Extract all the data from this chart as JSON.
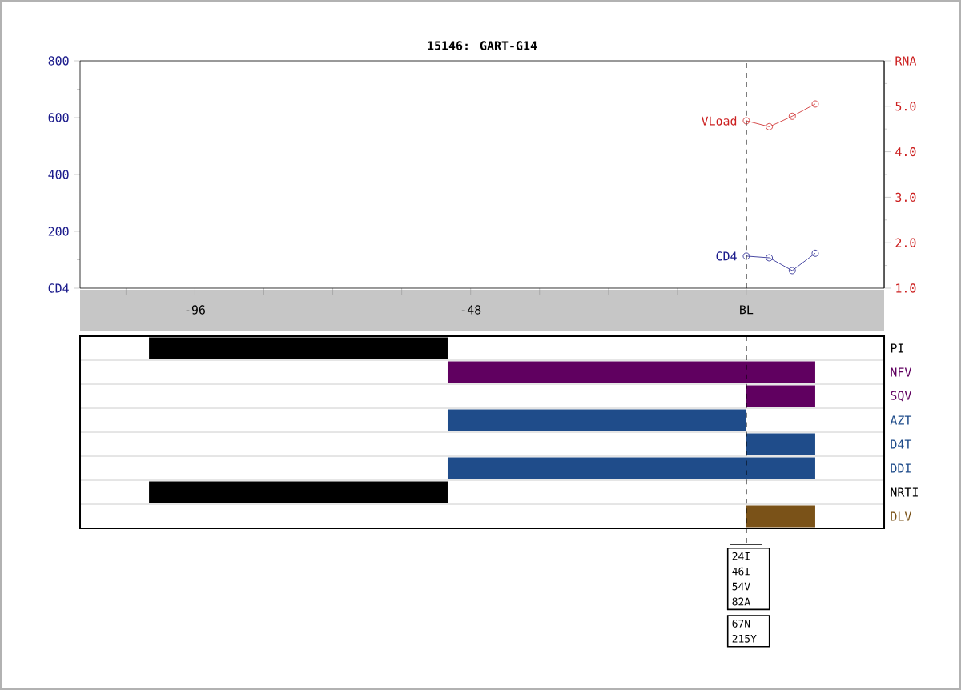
{
  "chart_data": [
    {
      "type": "line",
      "title": "15146: GART-G14",
      "x": [
        0,
        4,
        8,
        12
      ],
      "xlim": [
        -116,
        24
      ],
      "xticks": [
        {
          "value": -108,
          "label": null
        },
        -96,
        {
          "value": -84,
          "label": null
        },
        {
          "value": -72,
          "label": null
        },
        {
          "value": -60,
          "label": null
        },
        -48,
        {
          "value": -36,
          "label": null
        },
        {
          "value": -24,
          "label": null
        },
        {
          "value": -12,
          "label": null
        },
        {
          "value": 0,
          "label": "BL"
        }
      ],
      "ylim": [
        0,
        800
      ],
      "yticks": [
        {
          "value": 0,
          "label": "CD4"
        },
        200,
        400,
        600,
        800
      ],
      "y2lim": [
        1,
        6
      ],
      "y2ticks": [
        {
          "value": 1,
          "label": "1.0"
        },
        {
          "value": 2,
          "label": "2.0"
        },
        {
          "value": 3,
          "label": "3.0"
        },
        {
          "value": 4,
          "label": "4.0"
        },
        {
          "value": 5,
          "label": "5.0"
        },
        {
          "value": 6,
          "label": "RNA"
        }
      ],
      "series": [
        {
          "name": "CD4",
          "color": "#1c1c8c",
          "values": [
            113,
            107,
            62,
            123
          ]
        },
        {
          "name": "VLoad",
          "color": "#cc2020",
          "axis": "y2",
          "values": [
            4.68,
            4.55,
            4.78,
            5.05
          ]
        }
      ],
      "marker": "circle",
      "line_style": "solid",
      "grid": false,
      "ref_lines": [
        {
          "axis": "x",
          "value": 0,
          "line_style": "dashed"
        }
      ]
    },
    {
      "type": "bar",
      "orientation": "horizontal",
      "categories": [
        "PI",
        "NFV",
        "SQV",
        "AZT",
        "D4T",
        "DDI",
        "NRTI",
        "DLV"
      ],
      "values": [
        52,
        64,
        12,
        52,
        12,
        64,
        52,
        12
      ],
      "base": [
        -104,
        -52,
        0,
        -52,
        0,
        -52,
        -104,
        0
      ],
      "colors": [
        "#000000",
        "#600060",
        "#600060",
        "#1f4c8a",
        "#1f4c8a",
        "#1f4c8a",
        "#000000",
        "#7a5218"
      ],
      "xlim": [
        -116,
        24
      ],
      "tick_labels": "y",
      "grid": "y",
      "ref_lines": [
        {
          "axis": "x",
          "value": 0,
          "line_style": "dashed"
        }
      ],
      "annotations": [
        "24I 46I 54V 82A",
        "67N 215Y"
      ]
    }
  ]
}
